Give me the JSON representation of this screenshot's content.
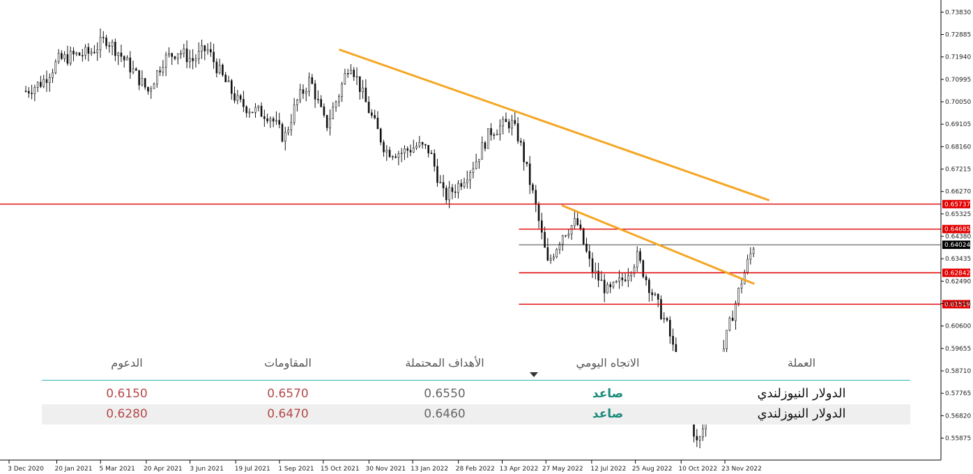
{
  "chart_data": {
    "type": "candlestick",
    "x_ticks": [
      "3 Dec 2020",
      "20 Jan 2021",
      "5 Mar 2021",
      "20 Apr 2021",
      "3 Jun 2021",
      "19 Jul 2021",
      "1 Sep 2021",
      "15 Oct 2021",
      "30 Nov 2021",
      "13 Jan 2022",
      "28 Feb 2022",
      "13 Apr 2022",
      "27 May 2022",
      "12 Jul 2022",
      "25 Aug 2022",
      "10 Oct 2022",
      "23 Nov 2022"
    ],
    "y_ticks": [
      "0.73830",
      "0.72885",
      "0.71940",
      "0.70995",
      "0.70050",
      "0.69105",
      "0.68160",
      "0.67215",
      "0.66270",
      "0.65325",
      "0.64380",
      "0.63435",
      "0.62490",
      "0.61545",
      "0.60600",
      "0.59655",
      "0.58710",
      "0.57765",
      "0.56820",
      "0.55875"
    ],
    "ylim": [
      0.5495,
      0.7434
    ],
    "x_range": [
      "3 Dec 2020",
      "5 Dec 2022"
    ],
    "approx_closes": [
      [
        "2020-12-03",
        0.705
      ],
      [
        "2020-12-20",
        0.709
      ],
      [
        "2021-01-05",
        0.718
      ],
      [
        "2021-01-20",
        0.72
      ],
      [
        "2021-02-05",
        0.721
      ],
      [
        "2021-02-22",
        0.727
      ],
      [
        "2021-03-05",
        0.722
      ],
      [
        "2021-03-20",
        0.714
      ],
      [
        "2021-04-05",
        0.705
      ],
      [
        "2021-04-20",
        0.718
      ],
      [
        "2021-05-05",
        0.722
      ],
      [
        "2021-05-20",
        0.718
      ],
      [
        "2021-06-03",
        0.723
      ],
      [
        "2021-06-20",
        0.71
      ],
      [
        "2021-07-05",
        0.7
      ],
      [
        "2021-07-19",
        0.697
      ],
      [
        "2021-08-05",
        0.695
      ],
      [
        "2021-08-20",
        0.685
      ],
      [
        "2021-09-01",
        0.7
      ],
      [
        "2021-09-15",
        0.71
      ],
      [
        "2021-10-01",
        0.69
      ],
      [
        "2021-10-15",
        0.705
      ],
      [
        "2021-10-25",
        0.718
      ],
      [
        "2021-11-10",
        0.7
      ],
      [
        "2021-11-30",
        0.68
      ],
      [
        "2021-12-15",
        0.679
      ],
      [
        "2022-01-01",
        0.682
      ],
      [
        "2022-01-13",
        0.68
      ],
      [
        "2022-01-28",
        0.66
      ],
      [
        "2022-02-10",
        0.665
      ],
      [
        "2022-02-28",
        0.675
      ],
      [
        "2022-03-15",
        0.688
      ],
      [
        "2022-04-05",
        0.692
      ],
      [
        "2022-04-13",
        0.685
      ],
      [
        "2022-04-28",
        0.66
      ],
      [
        "2022-05-12",
        0.632
      ],
      [
        "2022-05-27",
        0.645
      ],
      [
        "2022-06-10",
        0.65
      ],
      [
        "2022-06-25",
        0.63
      ],
      [
        "2022-07-12",
        0.62
      ],
      [
        "2022-07-25",
        0.625
      ],
      [
        "2022-08-10",
        0.635
      ],
      [
        "2022-08-25",
        0.62
      ],
      [
        "2022-09-10",
        0.605
      ],
      [
        "2022-09-25",
        0.58
      ],
      [
        "2022-10-10",
        0.555
      ],
      [
        "2022-10-25",
        0.578
      ],
      [
        "2022-11-10",
        0.605
      ],
      [
        "2022-11-23",
        0.625
      ],
      [
        "2022-12-05",
        0.64
      ]
    ],
    "horizontal_lines": [
      {
        "price": 0.65737,
        "label": "0.65737",
        "color": "#e00000",
        "full_width": true
      },
      {
        "price": 0.64685,
        "label": "0.64685",
        "color": "#e00000",
        "from": "2022-04-13"
      },
      {
        "price": 0.62842,
        "label": "0.62842",
        "color": "#e00000",
        "from": "2022-04-13"
      },
      {
        "price": 0.61519,
        "label": "0.61519",
        "color": "#e00000",
        "from": "2022-04-13"
      },
      {
        "price": 0.64024,
        "label": "0.64024",
        "color": "#000000",
        "from": "2022-04-13"
      }
    ],
    "trendlines": [
      {
        "color": "#f5a623",
        "start": [
          "2021-10-15",
          0.7224
        ],
        "end": [
          "2022-12-20",
          0.6591
        ]
      },
      {
        "color": "#f5a623",
        "start": [
          "2022-05-27",
          0.6567
        ],
        "end": [
          "2022-12-05",
          0.6239
        ]
      }
    ],
    "grid": false
  },
  "table": {
    "headers": {
      "currency": "العملة",
      "trend": "الاتجاه اليومي",
      "targets": "الأهداف المحتملة",
      "resistances": "المقاومات",
      "supports": "الدعوم"
    },
    "rows": [
      {
        "currency": "الدولار النيوزلندي",
        "trend": "صاعد",
        "target": "0.6550",
        "resistance": "0.6570",
        "support": "0.6150"
      },
      {
        "currency": "الدولار النيوزلندي",
        "trend": "صاعد",
        "target": "0.6460",
        "resistance": "0.6470",
        "support": "0.6280"
      }
    ]
  }
}
